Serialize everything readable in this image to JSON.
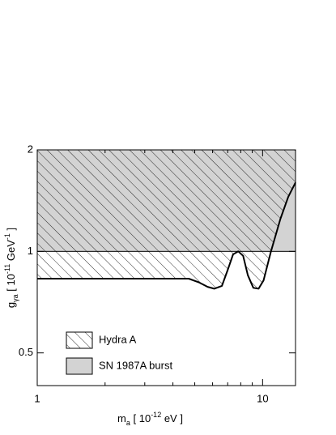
{
  "chart_data": {
    "type": "region",
    "xscale": "log",
    "yscale": "log",
    "xlim": [
      1,
      14
    ],
    "ylim": [
      0.4,
      2
    ],
    "xticks": [
      1,
      10
    ],
    "yticks": [
      2,
      1,
      0.5
    ],
    "xminorticks": [
      2,
      3,
      4,
      5,
      6,
      7,
      8,
      9
    ],
    "xlabel": [
      {
        "text": "m"
      },
      {
        "text": "a",
        "shift": "sub"
      },
      {
        "text": "  [ 10"
      },
      {
        "text": "-12",
        "shift": "super"
      },
      {
        "text": " eV ]"
      }
    ],
    "ylabel": [
      {
        "text": "g"
      },
      {
        "text": "γa",
        "shift": "sub"
      },
      {
        "text": "  [ 10"
      },
      {
        "text": "-11",
        "shift": "super"
      },
      {
        "text": " GeV"
      },
      {
        "text": "-1",
        "shift": "super"
      },
      {
        "text": " ]"
      }
    ],
    "series": [
      {
        "name": "SN 1987A burst",
        "color": "#d3d3d3",
        "fill": "solid",
        "ymin": 1,
        "ymax": 2
      },
      {
        "name": "Hydra A",
        "color": "#000000",
        "fill": "hatch",
        "ymax": 2,
        "x": [
          1,
          4.7,
          5.2,
          5.7,
          6.1,
          6.6,
          7.0,
          7.4,
          7.8,
          8.2,
          8.6,
          9.1,
          9.6,
          10.1,
          10.9,
          12,
          13,
          14
        ],
        "values": [
          0.83,
          0.83,
          0.81,
          0.785,
          0.775,
          0.79,
          0.88,
          0.98,
          1.0,
          0.97,
          0.85,
          0.78,
          0.775,
          0.82,
          1.0,
          1.25,
          1.45,
          1.6
        ]
      }
    ]
  }
}
